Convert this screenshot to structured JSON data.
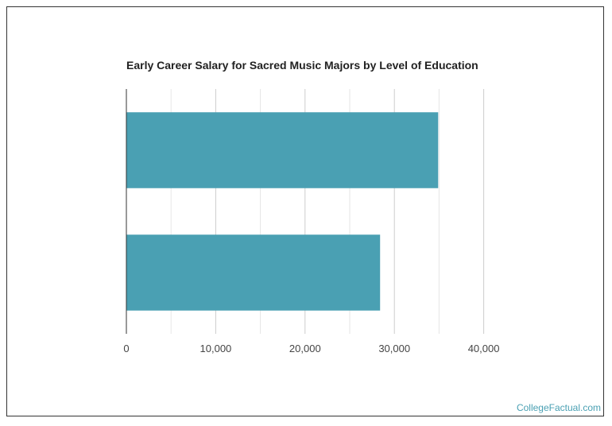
{
  "chart_data": {
    "type": "bar",
    "orientation": "horizontal",
    "title": "Early Career Salary for Sacred Music Majors by Level of Education",
    "categories": [
      "",
      ""
    ],
    "values": [
      34900,
      28400
    ],
    "xlim": [
      0,
      40000
    ],
    "xticks": [
      "0",
      "10,000",
      "20,000",
      "30,000",
      "40,000"
    ],
    "grid": true,
    "bar_color": "#4aa0b3"
  },
  "credit": "CollegeFactual.com"
}
